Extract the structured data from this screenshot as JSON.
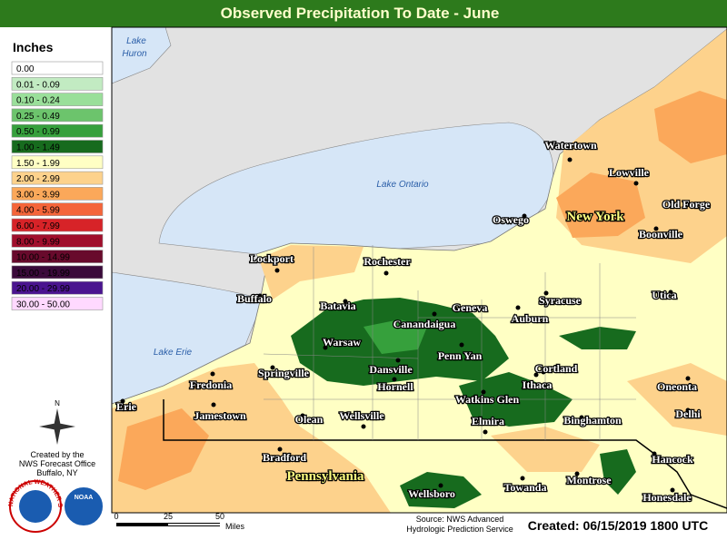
{
  "header": {
    "title": "Observed Precipitation To Date - June"
  },
  "legend": {
    "title": "Inches",
    "items": [
      {
        "label": "0.00",
        "color": "#ffffff"
      },
      {
        "label": "0.01 - 0.09",
        "color": "#c2ebc2"
      },
      {
        "label": "0.10 - 0.24",
        "color": "#9adf9a"
      },
      {
        "label": "0.25 - 0.49",
        "color": "#6cc46c"
      },
      {
        "label": "0.50 - 0.99",
        "color": "#36a03c"
      },
      {
        "label": "1.00 - 1.49",
        "color": "#176b1e"
      },
      {
        "label": "1.50 - 1.99",
        "color": "#ffffc4"
      },
      {
        "label": "2.00 - 2.99",
        "color": "#fdd28c"
      },
      {
        "label": "3.00 - 3.99",
        "color": "#fba85a"
      },
      {
        "label": "4.00 - 5.99",
        "color": "#f4653a"
      },
      {
        "label": "6.00 - 7.99",
        "color": "#d72328"
      },
      {
        "label": "8.00 - 9.99",
        "color": "#a00f2c"
      },
      {
        "label": "10.00 - 14.99",
        "color": "#680a2c"
      },
      {
        "label": "15.00 - 19.99",
        "color": "#3a0a3a"
      },
      {
        "label": "20.00 - 29.99",
        "color": "#4a148f"
      },
      {
        "label": "30.00 - 50.00",
        "color": "#ffd9ff"
      }
    ]
  },
  "credits": {
    "lines": [
      "Created by the",
      "NWS Forecast Office",
      "Buffalo, NY"
    ],
    "compass": "N",
    "nws": "NATIONAL WEATHER SERVICE",
    "noaa": "NOAA"
  },
  "lakes": [
    "Lake",
    "Huron",
    "Lake Ontario",
    "Lake Erie"
  ],
  "states": [
    "New York",
    "Pennsylvania"
  ],
  "cities": [
    "Watertown",
    "Lowville",
    "Old Forge",
    "Oswego",
    "Boonville",
    "Lockport",
    "Rochester",
    "Buffalo",
    "Syracuse",
    "Utica",
    "Batavia",
    "Geneva",
    "Canandaigua",
    "Auburn",
    "Warsaw",
    "Penn Yan",
    "Cortland",
    "Springville",
    "Dansville",
    "Fredonia",
    "Hornell",
    "Ithaca",
    "Oneonta",
    "Watkins Glen",
    "Erie",
    "Delhi",
    "Jamestown",
    "Olean",
    "Wellsville",
    "Elmira",
    "Binghamton",
    "Bradford",
    "Hancock",
    "Montrose",
    "Towanda",
    "Honesdale",
    "Wellsboro"
  ],
  "scale": {
    "labels": [
      "0",
      "25",
      "50",
      "Miles"
    ]
  },
  "source": [
    "Source: NWS Advanced",
    "Hydrologic Prediction Service"
  ],
  "created": "Created: 06/15/2019 1800 UTC"
}
